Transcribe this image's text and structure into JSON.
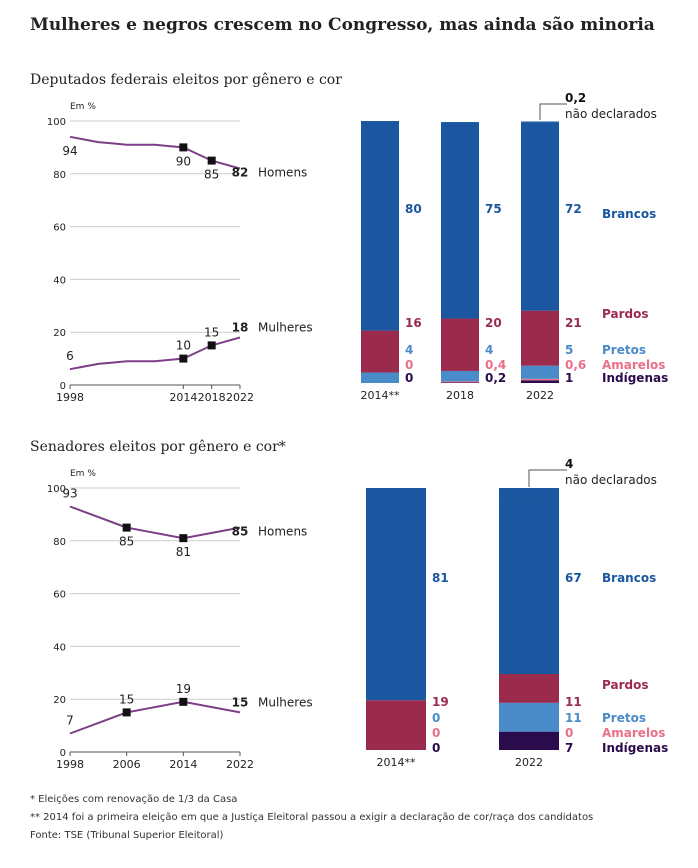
{
  "title": "Mulheres e negros crescem no Congresso, mas ainda são minoria",
  "colors": {
    "line": "#7d3f87",
    "marker": "#111111",
    "axis": "#555555",
    "grid": "#cccccc",
    "text": "#222222",
    "Brancos": "#1a57a0",
    "Pardos": "#9a2b4d",
    "Pretos": "#4a8cc9",
    "Amarelos": "#ea6f89",
    "Indígenas": "#2a0b4b",
    "nao_declarados": "#1a57a0"
  },
  "notes": {
    "note1": "* Eleições com renovação de 1/3 da Casa",
    "note2": "** 2014 foi a primeira eleição em que a Justiça Eleitoral passou a exigir a declaração de cor/raça dos candidatos",
    "source": "Fonte: TSE (Tribunal Superior Eleitoral)"
  },
  "chart_data": [
    {
      "type": "line",
      "title": "Deputados federais eleitos por gênero e cor",
      "ylabel": "Em %",
      "ylim": [
        0,
        100
      ],
      "yticks": [
        0,
        20,
        40,
        60,
        80,
        100
      ],
      "xlim": [
        1998,
        2022
      ],
      "xticks": [
        "1998",
        "2014",
        "2018",
        "2022"
      ],
      "series": [
        {
          "name": "Homens",
          "x": [
            1998,
            2000,
            2002,
            2004,
            2006,
            2008,
            2010,
            2012,
            2014,
            2016,
            2018,
            2020,
            2022
          ],
          "values": [
            94,
            93,
            92,
            91.5,
            91,
            91,
            91,
            90.5,
            90,
            87.5,
            85,
            83.5,
            82
          ],
          "labels": [
            {
              "x": 1998,
              "text": "94"
            },
            {
              "x": 2014,
              "text": "90"
            },
            {
              "x": 2018,
              "text": "85"
            }
          ],
          "end_label": "82",
          "markers": [
            2014,
            2018
          ]
        },
        {
          "name": "Mulheres",
          "x": [
            1998,
            2000,
            2002,
            2004,
            2006,
            2008,
            2010,
            2012,
            2014,
            2016,
            2018,
            2020,
            2022
          ],
          "values": [
            6,
            7,
            8,
            8.5,
            9,
            9,
            9,
            9.5,
            10,
            12.5,
            15,
            16.5,
            18
          ],
          "labels": [
            {
              "x": 1998,
              "text": "6"
            },
            {
              "x": 2014,
              "text": "10"
            },
            {
              "x": 2018,
              "text": "15"
            }
          ],
          "end_label": "18",
          "markers": [
            2014,
            2018
          ]
        }
      ]
    },
    {
      "type": "bar",
      "stacked": true,
      "categories": [
        "2014**",
        "2018",
        "2022"
      ],
      "ylim": [
        0,
        100
      ],
      "series": [
        {
          "name": "Indígenas",
          "values": [
            0,
            0.2,
            1
          ],
          "labels": [
            "0",
            "0,2",
            "1"
          ]
        },
        {
          "name": "Amarelos",
          "values": [
            0,
            0.4,
            0.6
          ],
          "labels": [
            "0",
            "0,4",
            "0,6"
          ]
        },
        {
          "name": "Pretos",
          "values": [
            4,
            4,
            5
          ],
          "labels": [
            "4",
            "4",
            "5"
          ]
        },
        {
          "name": "Pardos",
          "values": [
            16,
            20,
            21
          ],
          "labels": [
            "16",
            "20",
            "21"
          ]
        },
        {
          "name": "Brancos",
          "values": [
            80,
            75,
            72
          ],
          "labels": [
            "80",
            "75",
            "72"
          ]
        },
        {
          "name": "não declarados",
          "values": [
            0,
            0,
            0.2
          ],
          "labels": [
            "",
            "",
            "0,2"
          ]
        }
      ]
    },
    {
      "type": "line",
      "title": "Senadores eleitos por gênero e cor*",
      "ylabel": "Em %",
      "ylim": [
        0,
        100
      ],
      "yticks": [
        0,
        20,
        40,
        60,
        80,
        100
      ],
      "xlim": [
        1998,
        2022
      ],
      "xticks": [
        "1998",
        "2006",
        "2014",
        "2022"
      ],
      "series": [
        {
          "name": "Homens",
          "x": [
            1998,
            2006,
            2014,
            2022
          ],
          "values": [
            93,
            85,
            81,
            85
          ],
          "labels": [
            {
              "x": 1998,
              "text": "93"
            },
            {
              "x": 2006,
              "text": "85"
            },
            {
              "x": 2014,
              "text": "81"
            }
          ],
          "end_label": "85",
          "markers": [
            2006,
            2014
          ]
        },
        {
          "name": "Mulheres",
          "x": [
            1998,
            2006,
            2014,
            2022
          ],
          "values": [
            7,
            15,
            19,
            15
          ],
          "labels": [
            {
              "x": 1998,
              "text": "7"
            },
            {
              "x": 2006,
              "text": "15"
            },
            {
              "x": 2014,
              "text": "19"
            }
          ],
          "end_label": "15",
          "markers": [
            2006,
            2014
          ]
        }
      ]
    },
    {
      "type": "bar",
      "stacked": true,
      "categories": [
        "2014**",
        "2022"
      ],
      "ylim": [
        0,
        100
      ],
      "series": [
        {
          "name": "Indígenas",
          "values": [
            0,
            7
          ],
          "labels": [
            "0",
            "7"
          ]
        },
        {
          "name": "Amarelos",
          "values": [
            0,
            0
          ],
          "labels": [
            "0",
            "0"
          ]
        },
        {
          "name": "Pretos",
          "values": [
            0,
            11
          ],
          "labels": [
            "0",
            "11"
          ]
        },
        {
          "name": "Pardos",
          "values": [
            19,
            11
          ],
          "labels": [
            "19",
            "11"
          ]
        },
        {
          "name": "Brancos",
          "values": [
            81,
            67
          ],
          "labels": [
            "81",
            "67"
          ]
        },
        {
          "name": "não declarados",
          "values": [
            0,
            4
          ],
          "labels": [
            "",
            "4"
          ]
        }
      ]
    }
  ]
}
